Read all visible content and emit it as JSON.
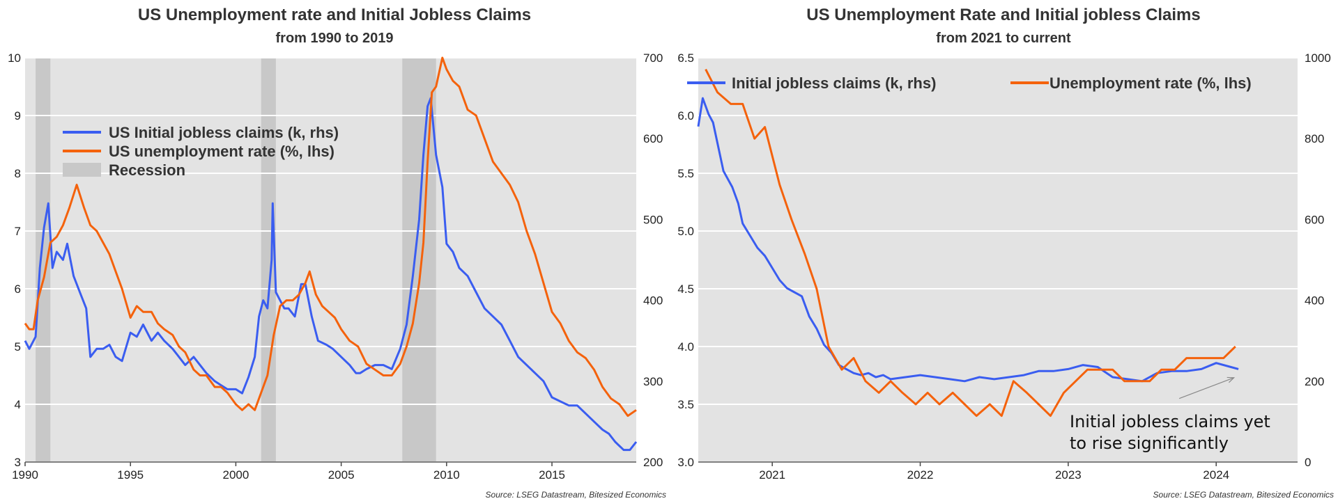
{
  "colors": {
    "claims": "#3A5DF0",
    "unemployment": "#F4620C",
    "recession": "#C8C8C8",
    "plot_bg": "#E3E3E3",
    "grid": "#FFFFFF"
  },
  "chart_data": [
    {
      "type": "line",
      "title": "US Unemployment rate and Initial Jobless Claims",
      "subtitle": "from 1990 to 2019",
      "source": "Source: LSEG Datastream, Bitesized Economics",
      "xlim": [
        1990,
        2019
      ],
      "ylim_left": [
        3,
        10
      ],
      "ylim_right": [
        200,
        700
      ],
      "x_ticks": [
        "1990",
        "1995",
        "2000",
        "2005",
        "2010",
        "2015"
      ],
      "x_tick_values": [
        1990,
        1995,
        2000,
        2005,
        2010,
        2015
      ],
      "y_left_ticks": [
        "3",
        "4",
        "5",
        "6",
        "7",
        "8",
        "9",
        "10"
      ],
      "y_left_tick_values": [
        3,
        4,
        5,
        6,
        7,
        8,
        9,
        10
      ],
      "y_right_ticks": [
        "200",
        "300",
        "400",
        "500",
        "600",
        "700"
      ],
      "y_right_tick_values": [
        200,
        300,
        400,
        500,
        600,
        700
      ],
      "grid": true,
      "legend": {
        "placement": "upper-left",
        "entries": [
          "US Initial jobless claims (k, rhs)",
          "US unemployment rate (%, lhs)",
          "Recession"
        ]
      },
      "recessions": [
        [
          1990.5,
          1991.2
        ],
        [
          2001.2,
          2001.9
        ],
        [
          2007.9,
          2009.5
        ]
      ],
      "series": [
        {
          "name": "US Initial jobless claims (k, rhs)",
          "axis": "right",
          "x": [
            1990.0,
            1990.2,
            1990.5,
            1990.7,
            1990.9,
            1991.1,
            1991.3,
            1991.5,
            1991.8,
            1992.0,
            1992.3,
            1992.6,
            1992.9,
            1993.1,
            1993.4,
            1993.7,
            1994.0,
            1994.3,
            1994.6,
            1995.0,
            1995.3,
            1995.6,
            1996.0,
            1996.3,
            1996.6,
            1997.0,
            1997.3,
            1997.6,
            1998.0,
            1998.3,
            1998.6,
            1999.0,
            1999.3,
            1999.6,
            2000.0,
            2000.3,
            2000.6,
            2000.9,
            2001.1,
            2001.3,
            2001.5,
            2001.7,
            2001.75,
            2001.9,
            2002.1,
            2002.3,
            2002.5,
            2002.8,
            2003.1,
            2003.3,
            2003.6,
            2003.9,
            2004.3,
            2004.6,
            2005.0,
            2005.4,
            2005.7,
            2005.9,
            2006.2,
            2006.6,
            2007.0,
            2007.4,
            2007.8,
            2008.1,
            2008.4,
            2008.7,
            2008.9,
            2009.1,
            2009.25,
            2009.5,
            2009.8,
            2010.0,
            2010.3,
            2010.6,
            2011.0,
            2011.4,
            2011.8,
            2012.2,
            2012.6,
            2013.0,
            2013.4,
            2013.8,
            2014.2,
            2014.6,
            2015.0,
            2015.4,
            2015.8,
            2016.2,
            2016.6,
            2017.0,
            2017.4,
            2017.7,
            2018.0,
            2018.4,
            2018.7,
            2019.0
          ],
          "values": [
            350,
            340,
            355,
            440,
            490,
            520,
            440,
            460,
            450,
            470,
            430,
            410,
            390,
            330,
            340,
            340,
            345,
            330,
            325,
            360,
            355,
            370,
            350,
            360,
            350,
            340,
            330,
            320,
            330,
            320,
            310,
            300,
            295,
            290,
            290,
            285,
            305,
            330,
            380,
            400,
            390,
            450,
            520,
            410,
            400,
            390,
            390,
            380,
            420,
            420,
            380,
            350,
            345,
            340,
            330,
            320,
            310,
            310,
            315,
            320,
            320,
            315,
            340,
            370,
            430,
            500,
            580,
            640,
            650,
            580,
            540,
            470,
            460,
            440,
            430,
            410,
            390,
            380,
            370,
            350,
            330,
            320,
            310,
            300,
            280,
            275,
            270,
            270,
            260,
            250,
            240,
            235,
            225,
            215,
            215,
            225
          ]
        },
        {
          "name": "US unemployment rate (%, lhs)",
          "axis": "left",
          "x": [
            1990.0,
            1990.2,
            1990.4,
            1990.6,
            1990.9,
            1991.2,
            1991.5,
            1991.8,
            1992.1,
            1992.45,
            1992.8,
            1993.1,
            1993.4,
            1993.7,
            1994.0,
            1994.3,
            1994.6,
            1995.0,
            1995.3,
            1995.6,
            1996.0,
            1996.3,
            1996.6,
            1997.0,
            1997.3,
            1997.6,
            1998.0,
            1998.3,
            1998.6,
            1999.0,
            1999.3,
            1999.6,
            2000.0,
            2000.3,
            2000.6,
            2000.9,
            2001.2,
            2001.5,
            2001.8,
            2002.1,
            2002.4,
            2002.7,
            2003.0,
            2003.3,
            2003.5,
            2003.8,
            2004.1,
            2004.4,
            2004.7,
            2005.0,
            2005.4,
            2005.8,
            2006.2,
            2006.6,
            2007.0,
            2007.4,
            2007.8,
            2008.1,
            2008.4,
            2008.7,
            2008.9,
            2009.1,
            2009.3,
            2009.5,
            2009.8,
            2010.0,
            2010.3,
            2010.6,
            2011.0,
            2011.4,
            2011.8,
            2012.2,
            2012.6,
            2013.0,
            2013.4,
            2013.8,
            2014.2,
            2014.6,
            2015.0,
            2015.4,
            2015.8,
            2016.2,
            2016.6,
            2017.0,
            2017.4,
            2017.8,
            2018.2,
            2018.6,
            2019.0
          ],
          "values": [
            5.4,
            5.3,
            5.3,
            5.8,
            6.2,
            6.8,
            6.9,
            7.1,
            7.4,
            7.8,
            7.4,
            7.1,
            7.0,
            6.8,
            6.6,
            6.3,
            6.0,
            5.5,
            5.7,
            5.6,
            5.6,
            5.4,
            5.3,
            5.2,
            5.0,
            4.9,
            4.6,
            4.5,
            4.5,
            4.3,
            4.3,
            4.2,
            4.0,
            3.9,
            4.0,
            3.9,
            4.2,
            4.5,
            5.2,
            5.7,
            5.8,
            5.8,
            5.9,
            6.1,
            6.3,
            5.9,
            5.7,
            5.6,
            5.5,
            5.3,
            5.1,
            5.0,
            4.7,
            4.6,
            4.5,
            4.5,
            4.7,
            5.0,
            5.4,
            6.1,
            6.8,
            8.2,
            9.4,
            9.5,
            10.0,
            9.8,
            9.6,
            9.5,
            9.1,
            9.0,
            8.6,
            8.2,
            8.0,
            7.8,
            7.5,
            7.0,
            6.6,
            6.1,
            5.6,
            5.4,
            5.1,
            4.9,
            4.8,
            4.6,
            4.3,
            4.1,
            4.0,
            3.8,
            3.9
          ]
        }
      ]
    },
    {
      "type": "line",
      "title": "US Unemployment Rate and Initial jobless Claims",
      "subtitle": "from 2021 to current",
      "source": "Source: LSEG Datastream, Bitesized Economics",
      "xlim": [
        2020.5,
        2024.55
      ],
      "ylim_left": [
        3.0,
        6.5
      ],
      "ylim_right": [
        0,
        1000
      ],
      "x_ticks": [
        "2021",
        "2022",
        "2023",
        "2024"
      ],
      "x_tick_values": [
        2021,
        2022,
        2023,
        2024
      ],
      "y_left_ticks": [
        "3.0",
        "3.5",
        "4.0",
        "4.5",
        "5.0",
        "5.5",
        "6.0",
        "6.5"
      ],
      "y_left_tick_values": [
        3.0,
        3.5,
        4.0,
        4.5,
        5.0,
        5.5,
        6.0,
        6.5
      ],
      "y_right_ticks": [
        "0",
        "200",
        "400",
        "600",
        "800",
        "1000"
      ],
      "y_right_tick_values": [
        0,
        200,
        400,
        600,
        800,
        1000
      ],
      "grid": true,
      "legend": {
        "placement": "top",
        "entries": [
          "Initial jobless claims (k, rhs)",
          "Unemployment rate (%, lhs)"
        ]
      },
      "annotation": {
        "lines": [
          "Initial jobless claims yet",
          "to rise significantly"
        ],
        "arrow_from": [
          2023.75,
          3.55
        ],
        "arrow_to": [
          2024.12,
          3.73
        ]
      },
      "series": [
        {
          "name": "Initial jobless claims (k, rhs)",
          "axis": "right",
          "x": [
            2020.5,
            2020.53,
            2020.57,
            2020.6,
            2020.67,
            2020.73,
            2020.77,
            2020.8,
            2020.85,
            2020.9,
            2020.95,
            2021.0,
            2021.05,
            2021.1,
            2021.15,
            2021.2,
            2021.25,
            2021.3,
            2021.35,
            2021.4,
            2021.45,
            2021.5,
            2021.55,
            2021.6,
            2021.65,
            2021.7,
            2021.75,
            2021.8,
            2021.9,
            2022.0,
            2022.1,
            2022.2,
            2022.3,
            2022.4,
            2022.5,
            2022.6,
            2022.7,
            2022.8,
            2022.9,
            2023.0,
            2023.1,
            2023.2,
            2023.3,
            2023.4,
            2023.5,
            2023.6,
            2023.7,
            2023.8,
            2023.9,
            2024.0,
            2024.1,
            2024.15
          ],
          "values": [
            830,
            900,
            860,
            840,
            720,
            680,
            640,
            590,
            560,
            530,
            510,
            480,
            450,
            430,
            420,
            410,
            360,
            330,
            290,
            270,
            240,
            230,
            220,
            215,
            220,
            210,
            215,
            205,
            210,
            215,
            210,
            205,
            200,
            210,
            205,
            210,
            215,
            225,
            225,
            230,
            240,
            235,
            210,
            205,
            200,
            220,
            225,
            225,
            230,
            245,
            235,
            230
          ]
        },
        {
          "name": "Unemployment rate (%, lhs)",
          "axis": "left",
          "x": [
            2020.55,
            2020.63,
            2020.72,
            2020.8,
            2020.88,
            2020.95,
            2021.05,
            2021.13,
            2021.22,
            2021.3,
            2021.38,
            2021.47,
            2021.55,
            2021.63,
            2021.72,
            2021.8,
            2021.88,
            2021.97,
            2022.05,
            2022.13,
            2022.22,
            2022.3,
            2022.38,
            2022.47,
            2022.55,
            2022.63,
            2022.72,
            2022.8,
            2022.88,
            2022.97,
            2023.05,
            2023.13,
            2023.22,
            2023.3,
            2023.38,
            2023.47,
            2023.55,
            2023.63,
            2023.72,
            2023.8,
            2023.88,
            2023.97,
            2024.05,
            2024.13
          ],
          "values": [
            6.4,
            6.2,
            6.1,
            6.1,
            5.8,
            5.9,
            5.4,
            5.1,
            4.8,
            4.5,
            4.0,
            3.8,
            3.9,
            3.7,
            3.6,
            3.7,
            3.6,
            3.5,
            3.6,
            3.5,
            3.6,
            3.5,
            3.4,
            3.5,
            3.4,
            3.7,
            3.6,
            3.5,
            3.4,
            3.6,
            3.7,
            3.8,
            3.8,
            3.8,
            3.7,
            3.7,
            3.7,
            3.8,
            3.8,
            3.9,
            3.9,
            3.9,
            3.9,
            4.0
          ]
        }
      ]
    }
  ]
}
